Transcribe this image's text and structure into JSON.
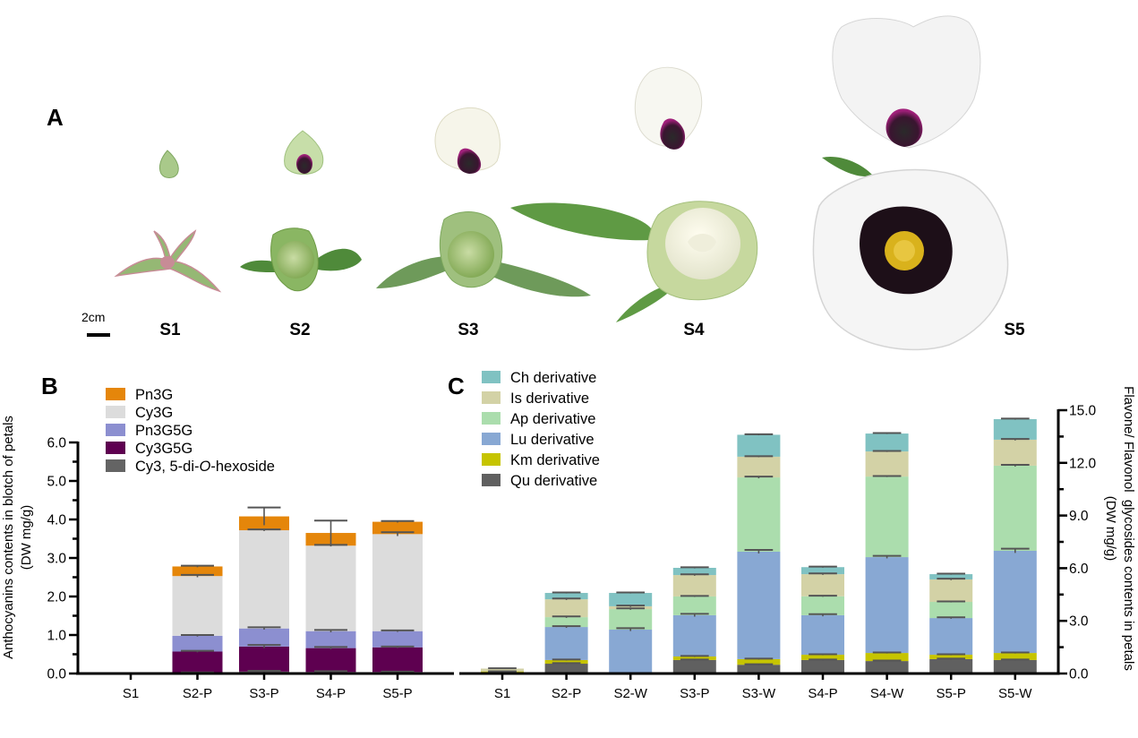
{
  "panel_a": {
    "letter": "A",
    "scale_label": "2cm",
    "stages": [
      "S1",
      "S2",
      "S3",
      "S4",
      "S5"
    ]
  },
  "chart_data": [
    {
      "id": "B",
      "panel_letter": "B",
      "type": "bar",
      "stacked": true,
      "title": "",
      "xlabel": "",
      "ylabel": "Anthocyanins contents in blotch of petals",
      "ylabel_unit": "(DW mg/g)",
      "ylim": [
        0,
        6.0
      ],
      "yticks": [
        "0.0",
        "1.0",
        "2.0",
        "3.0",
        "4.0",
        "5.0",
        "6.0"
      ],
      "y_minor_step": 0.5,
      "y_axis_side": "left",
      "grid": false,
      "legend_position": "top-left",
      "categories": [
        "S1",
        "S2-P",
        "S3-P",
        "S4-P",
        "S5-P"
      ],
      "series": [
        {
          "name": "Cy3, 5-di-O-hexoside",
          "color": "#646464",
          "values": [
            0,
            0.02,
            0.05,
            0.04,
            0.04
          ],
          "errors": [
            0,
            0.01,
            0.02,
            0.02,
            0.01
          ]
        },
        {
          "name": "Cy3G5G",
          "color": "#5E0050",
          "values": [
            0,
            0.55,
            0.65,
            0.62,
            0.64
          ],
          "errors": [
            0,
            0.02,
            0.04,
            0.03,
            0.02
          ]
        },
        {
          "name": "Pn3G5G",
          "color": "#8C8FD0",
          "values": [
            0,
            0.41,
            0.47,
            0.44,
            0.42
          ],
          "errors": [
            0,
            0.02,
            0.03,
            0.03,
            0.02
          ]
        },
        {
          "name": "Cy3G",
          "color": "#DCDCDC",
          "values": [
            0,
            1.55,
            2.55,
            2.22,
            2.52
          ],
          "errors": [
            0,
            0.03,
            0.02,
            0.02,
            0.05
          ]
        },
        {
          "name": "Pn3G",
          "color": "#E5860A",
          "values": [
            0,
            0.25,
            0.36,
            0.33,
            0.32
          ],
          "errors": [
            0,
            0.02,
            0.23,
            0.32,
            0.02
          ]
        }
      ],
      "legend_order": [
        "Pn3G",
        "Cy3G",
        "Pn3G5G",
        "Cy3G5G",
        "Cy3, 5-di-O-hexoside"
      ],
      "legend_labels": [
        {
          "pre": "Pn3G",
          "ital": "",
          "post": ""
        },
        {
          "pre": "Cy3G",
          "ital": "",
          "post": ""
        },
        {
          "pre": "Pn3G5G",
          "ital": "",
          "post": ""
        },
        {
          "pre": "Cy3G5G",
          "ital": "",
          "post": ""
        },
        {
          "pre": "Cy3, 5-di-",
          "ital": "O",
          "post": "-hexoside"
        }
      ]
    },
    {
      "id": "C",
      "panel_letter": "C",
      "type": "bar",
      "stacked": true,
      "title": "",
      "xlabel": "",
      "ylabel": "Flavone/ Flavonol  glycosides contents in petals",
      "ylabel_unit": "(DW mg/g)",
      "ylim": [
        0,
        15.0
      ],
      "yticks": [
        "0.0",
        "3.0",
        "6.0",
        "9.0",
        "12.0",
        "15.0"
      ],
      "y_minor_step": 1.5,
      "y_axis_side": "right",
      "grid": false,
      "legend_position": "top-left",
      "categories": [
        "S1",
        "S2-P",
        "S2-W",
        "S3-P",
        "S3-W",
        "S4-P",
        "S4-W",
        "S5-P",
        "S5-W"
      ],
      "series": [
        {
          "name": "Qu derivative",
          "color": "#606060",
          "values": [
            0.08,
            0.56,
            0.0,
            0.77,
            0.5,
            0.77,
            0.71,
            0.82,
            0.77
          ],
          "errors": [
            0.02,
            0.03,
            0,
            0.03,
            0.03,
            0.03,
            0.03,
            0.03,
            0.03
          ]
        },
        {
          "name": "Km derivative",
          "color": "#C6C400",
          "values": [
            0.04,
            0.21,
            0.0,
            0.2,
            0.32,
            0.3,
            0.46,
            0.25,
            0.4
          ],
          "errors": [
            0.01,
            0.03,
            0,
            0.03,
            0.03,
            0.03,
            0.03,
            0.03,
            0.03
          ]
        },
        {
          "name": "Lu derivative",
          "color": "#88A8D3",
          "values": [
            0,
            1.88,
            2.5,
            2.35,
            6.12,
            2.25,
            5.46,
            2.09,
            5.82
          ],
          "errors": [
            0,
            0.05,
            0.08,
            0.08,
            0.1,
            0.06,
            0.07,
            0.04,
            0.12
          ]
        },
        {
          "name": "Ap derivative",
          "color": "#ABDDAD",
          "values": [
            0,
            0.56,
            1.17,
            1.07,
            4.23,
            1.08,
            4.59,
            0.92,
            4.85
          ],
          "errors": [
            0,
            0.04,
            0.04,
            0.03,
            0.05,
            0.03,
            0.03,
            0.03,
            0.05
          ]
        },
        {
          "name": "Is derivative",
          "color": "#D3D2A6",
          "values": [
            0.16,
            1.02,
            0.16,
            1.22,
            1.18,
            1.26,
            1.43,
            1.28,
            1.48
          ],
          "errors": [
            0.02,
            0.04,
            0.04,
            0.04,
            0.03,
            0.04,
            0.03,
            0.04,
            0.04
          ]
        },
        {
          "name": "Ch derivative",
          "color": "#80C2C2",
          "values": [
            0,
            0.36,
            0.76,
            0.41,
            1.25,
            0.4,
            1.02,
            0.3,
            1.17
          ],
          "errors": [
            0,
            0.03,
            0.03,
            0.03,
            0.03,
            0.03,
            0.03,
            0.03,
            0.03
          ]
        }
      ],
      "legend_order": [
        "Ch derivative",
        "Is derivative",
        "Ap derivative",
        "Lu derivative",
        "Km derivative",
        "Qu derivative"
      ]
    }
  ]
}
